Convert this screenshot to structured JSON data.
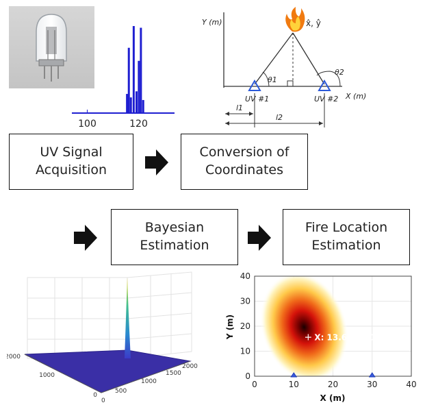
{
  "spectrum": {
    "tick_labels": [
      "100",
      "120"
    ]
  },
  "geometry": {
    "y_axis_label": "Y (m)",
    "x_axis_label": "X (m)",
    "target_label": "x̂, ŷ",
    "sensor1_label": "UV #1",
    "sensor2_label": "UV #2",
    "theta1": "θ1",
    "theta2": "θ2",
    "l1": "l1",
    "l2": "l2"
  },
  "flow": {
    "box1_line1": "UV Signal",
    "box1_line2": "Acquisition",
    "box2_line1": "Conversion of",
    "box2_line2": "Coordinates",
    "box3_line1": "Bayesian",
    "box3_line2": "Estimation",
    "box4_line1": "Fire Location",
    "box4_line2": "Estimation"
  },
  "surface": {
    "axis_x_ticks": [
      "0",
      "500",
      "1000",
      "1500",
      "2000"
    ],
    "axis_y_ticks": [
      "0",
      "1000",
      "2000"
    ]
  },
  "heatmap": {
    "y_label": "Y (m)",
    "x_label": "X (m)",
    "x_ticks": [
      "0",
      "10",
      "20",
      "30",
      "40"
    ],
    "y_ticks": [
      "0",
      "10",
      "20",
      "30",
      "40"
    ],
    "annotation": "X: 13.68, Y: 15.76"
  },
  "chart_data": [
    {
      "type": "bar",
      "title": "",
      "xlabel": "",
      "ylabel": "",
      "xlim": [
        94,
        134
      ],
      "x_ticks": [
        100,
        120
      ],
      "x": [
        115.5,
        116.2,
        117.0,
        118.1,
        119.2,
        120.1,
        120.9,
        121.8
      ],
      "values": [
        0.22,
        0.75,
        0.18,
        1.0,
        0.25,
        0.6,
        0.98,
        0.15
      ]
    },
    {
      "type": "heatmap",
      "title": "",
      "xlabel": "X (m)",
      "ylabel": "Y (m)",
      "xlim": [
        0,
        40
      ],
      "ylim": [
        0,
        40
      ],
      "peak": {
        "x": 13.68,
        "y": 15.76
      },
      "sensors": [
        {
          "x": 10,
          "y": 0
        },
        {
          "x": 30,
          "y": 0
        }
      ]
    }
  ]
}
